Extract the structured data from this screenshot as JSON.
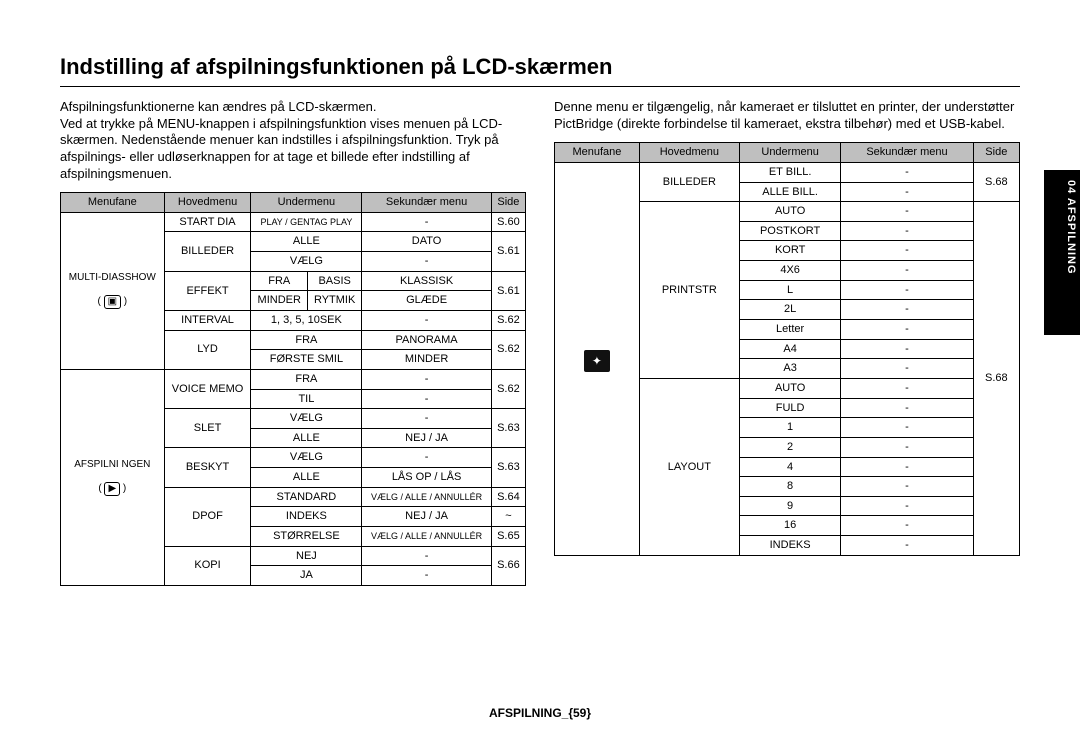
{
  "page": {
    "title": "Indstilling af afspilningsfunktionen på LCD-skærmen",
    "footer": "AFSPILNING_{59}",
    "side_tab": "04 AFSPILNING"
  },
  "left_intro": "Afspilningsfunktionerne kan ændres på LCD-skærmen.\nVed at trykke på MENU-knappen i afspilningsfunktion vises menuen på LCD-skærmen. Nedenstående menuer kan indstilles i afspilningsfunktion. Tryk på afspilnings- eller udløserknappen for at tage et billede efter indstilling af afspilningsmenuen.",
  "right_intro": "Denne menu er tilgængelig, når kameraet er tilsluttet en printer, der understøtter PictBridge (direkte forbindelse til kameraet, ekstra tilbehør) med et USB-kabel.",
  "headers": {
    "c1": "Menufane",
    "c2": "Hovedmenu",
    "c3": "Undermenu",
    "c4": "Sekundær menu",
    "c5": "Side"
  },
  "left_table": {
    "group1": {
      "fane": "MULTI-DIASSHOW",
      "rows": [
        {
          "hm": "START DIA",
          "um": "PLAY / GENTAG PLAY",
          "sm": "-",
          "side": "S.60"
        },
        {
          "hm": "BILLEDER",
          "um": "ALLE",
          "sm": "DATO",
          "side": "S.61"
        },
        {
          "hm": "",
          "um": "VÆLG",
          "sm": "-",
          "side": ""
        },
        {
          "hm": "EFFEKT",
          "um": "FRA",
          "um2": "BASIS",
          "sm": "KLASSISK",
          "side": "S.61"
        },
        {
          "hm": "",
          "um": "MINDER",
          "um2": "RYTMIK",
          "sm": "GLÆDE",
          "side": ""
        },
        {
          "hm": "INTERVAL",
          "um": "1, 3, 5, 10SEK",
          "sm": "-",
          "side": "S.62"
        },
        {
          "hm": "LYD",
          "um": "FRA",
          "sm": "PANORAMA",
          "side": "S.62"
        },
        {
          "hm": "",
          "um": "FØRSTE SMIL",
          "sm": "MINDER",
          "side": ""
        }
      ]
    },
    "group2": {
      "fane": "AFSPILNI NGEN",
      "rows": [
        {
          "hm": "VOICE MEMO",
          "um": "FRA",
          "sm": "-",
          "side": "S.62"
        },
        {
          "hm": "",
          "um": "TIL",
          "sm": "-",
          "side": ""
        },
        {
          "hm": "SLET",
          "um": "VÆLG",
          "sm": "-",
          "side": "S.63"
        },
        {
          "hm": "",
          "um": "ALLE",
          "sm": "NEJ / JA",
          "side": ""
        },
        {
          "hm": "BESKYT",
          "um": "VÆLG",
          "sm": "-",
          "side": "S.63"
        },
        {
          "hm": "",
          "um": "ALLE",
          "sm": "LÅS OP / LÅS",
          "side": ""
        },
        {
          "hm": "DPOF",
          "um": "STANDARD",
          "sm": "VÆLG / ALLE / ANNULLÉR",
          "side": "S.64"
        },
        {
          "hm": "",
          "um": "INDEKS",
          "sm": "NEJ / JA",
          "side": "~"
        },
        {
          "hm": "",
          "um": "STØRRELSE",
          "sm": "VÆLG / ALLE / ANNULLÉR",
          "side": "S.65"
        },
        {
          "hm": "KOPI",
          "um": "NEJ",
          "sm": "-",
          "side": "S.66"
        },
        {
          "hm": "",
          "um": "JA",
          "sm": "-",
          "side": ""
        }
      ]
    }
  },
  "right_table": {
    "fane_icon": "⌂",
    "g1": {
      "hm": "BILLEDER",
      "rows": [
        {
          "um": "ET BILL.",
          "sm": "-"
        },
        {
          "um": "ALLE BILL.",
          "sm": "-"
        }
      ],
      "side": "S.68"
    },
    "g2": {
      "hm": "PRINTSTR",
      "rows": [
        {
          "um": "AUTO",
          "sm": "-"
        },
        {
          "um": "POSTKORT",
          "sm": "-"
        },
        {
          "um": "KORT",
          "sm": "-"
        },
        {
          "um": "4X6",
          "sm": "-"
        },
        {
          "um": "L",
          "sm": "-"
        },
        {
          "um": "2L",
          "sm": "-"
        },
        {
          "um": "Letter",
          "sm": "-"
        },
        {
          "um": "A4",
          "sm": "-"
        },
        {
          "um": "A3",
          "sm": "-"
        }
      ],
      "side": "S.68"
    },
    "g3": {
      "hm": "LAYOUT",
      "rows": [
        {
          "um": "AUTO",
          "sm": "-"
        },
        {
          "um": "FULD",
          "sm": "-"
        },
        {
          "um": "1",
          "sm": "-"
        },
        {
          "um": "2",
          "sm": "-"
        },
        {
          "um": "4",
          "sm": "-"
        },
        {
          "um": "8",
          "sm": "-"
        },
        {
          "um": "9",
          "sm": "-"
        },
        {
          "um": "16",
          "sm": "-"
        },
        {
          "um": "INDEKS",
          "sm": "-"
        }
      ]
    }
  }
}
